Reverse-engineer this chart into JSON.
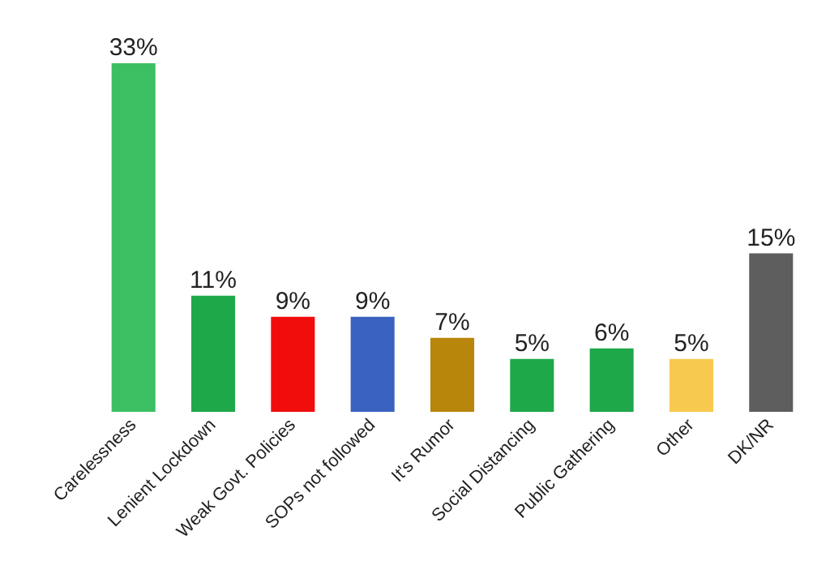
{
  "chart_data": {
    "type": "bar",
    "categories": [
      "Carelessness",
      "Lenient Lockdown",
      "Weak Govt. Policies",
      "SOPs not followed",
      "It's Rumor",
      "Social Distancing",
      "Public Gathering",
      "Other",
      "DK/NR"
    ],
    "values": [
      33,
      11,
      9,
      9,
      7,
      5,
      6,
      5,
      15
    ],
    "colors": [
      "#3cbf63",
      "#1fa84a",
      "#f20d0d",
      "#3a62c0",
      "#b8860b",
      "#1fa84a",
      "#1fa84a",
      "#f7c94e",
      "#5e5e5e"
    ],
    "value_labels": [
      "33%",
      "11%",
      "9%",
      "9%",
      "7%",
      "5%",
      "6%",
      "5%",
      "15%"
    ],
    "grid": false
  }
}
